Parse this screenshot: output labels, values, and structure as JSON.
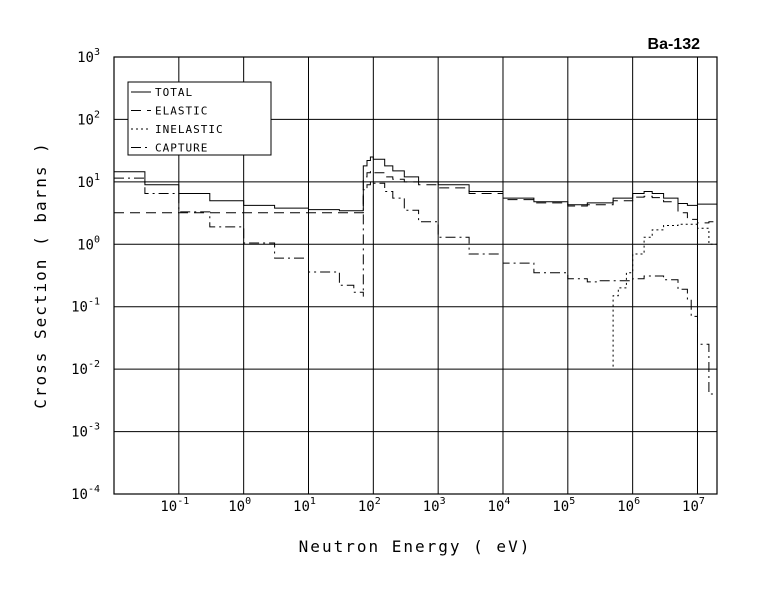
{
  "chart_data": {
    "type": "line",
    "title": "Ba-132",
    "xlabel": "Neutron Energy ( eV)",
    "ylabel": "Cross Section ( barns )",
    "x_scale": "log",
    "y_scale": "log",
    "xlim": [
      0.01,
      20000000
    ],
    "ylim": [
      0.0001,
      1000
    ],
    "grid": true,
    "legend_position": "top-left",
    "x_ticks": [
      {
        "base": "10",
        "exp": "-1",
        "value": 0.1
      },
      {
        "base": "10",
        "exp": "0",
        "value": 1
      },
      {
        "base": "10",
        "exp": "1",
        "value": 10
      },
      {
        "base": "10",
        "exp": "2",
        "value": 100
      },
      {
        "base": "10",
        "exp": "3",
        "value": 1000
      },
      {
        "base": "10",
        "exp": "4",
        "value": 10000
      },
      {
        "base": "10",
        "exp": "5",
        "value": 100000
      },
      {
        "base": "10",
        "exp": "6",
        "value": 1000000
      },
      {
        "base": "10",
        "exp": "7",
        "value": 10000000
      }
    ],
    "y_ticks": [
      {
        "base": "10",
        "exp": "-4",
        "value": 0.0001
      },
      {
        "base": "10",
        "exp": "-3",
        "value": 0.001
      },
      {
        "base": "10",
        "exp": "-2",
        "value": 0.01
      },
      {
        "base": "10",
        "exp": "-1",
        "value": 0.1
      },
      {
        "base": "10",
        "exp": "0",
        "value": 1
      },
      {
        "base": "10",
        "exp": "1",
        "value": 10
      },
      {
        "base": "10",
        "exp": "2",
        "value": 100
      },
      {
        "base": "10",
        "exp": "3",
        "value": 1000
      }
    ],
    "series": [
      {
        "name": "TOTAL",
        "dash": "solid",
        "x": [
          0.01,
          0.03,
          0.1,
          0.3,
          1,
          3,
          10,
          30,
          70,
          70,
          80,
          90,
          100,
          150,
          200,
          300,
          500,
          1000,
          3000,
          10000,
          30000,
          100000,
          200000,
          500000,
          1000000,
          1500000,
          2000000,
          3000000,
          5000000,
          7000000,
          10000000,
          20000000
        ],
        "y": [
          14.5,
          9,
          6.5,
          5,
          4.2,
          3.8,
          3.6,
          3.45,
          3.4,
          18,
          22,
          25,
          23,
          18,
          15,
          12,
          10,
          9,
          7,
          5.5,
          4.8,
          4.3,
          4.6,
          5.5,
          6.5,
          7,
          6.5,
          5.5,
          4.5,
          4.2,
          4.4,
          4.8
        ]
      },
      {
        "name": "ELASTIC",
        "dash": "long-dash",
        "x": [
          0.01,
          0.1,
          1,
          10,
          70,
          70,
          80,
          90,
          100,
          150,
          200,
          300,
          500,
          1000,
          3000,
          10000,
          30000,
          100000,
          200000,
          500000,
          1000000,
          1500000,
          2000000,
          3000000,
          5000000,
          7000000,
          10000000,
          15000000,
          20000000
        ],
        "y": [
          3.2,
          3.2,
          3.2,
          3.2,
          3.2,
          12,
          14,
          15,
          14,
          12,
          11,
          10,
          9,
          8,
          6.5,
          5.2,
          4.6,
          4.1,
          4.3,
          5,
          5.7,
          5.9,
          5.6,
          4.8,
          3.2,
          2.5,
          2.2,
          2.3,
          2.6
        ]
      },
      {
        "name": "INELASTIC",
        "dash": "dotted",
        "x": [
          500000,
          500000,
          600000,
          800000,
          1000000,
          1500000,
          2000000,
          3000000,
          5000000,
          7000000,
          10000000,
          15000000,
          20000000
        ],
        "y": [
          0.011,
          0.15,
          0.2,
          0.35,
          0.7,
          1.3,
          1.7,
          2,
          2.1,
          2.1,
          1.8,
          1,
          0.5
        ]
      },
      {
        "name": "CAPTURE",
        "dash": "dash-dot",
        "x": [
          0.01,
          0.03,
          0.1,
          0.3,
          1,
          3,
          10,
          30,
          50,
          70,
          70,
          80,
          90,
          100,
          150,
          200,
          300,
          500,
          1000,
          3000,
          10000,
          30000,
          100000,
          200000,
          300000,
          500000,
          1000000,
          1500000,
          2000000,
          3000000,
          5000000,
          7000000,
          8000000,
          10000000,
          15000000,
          20000000
        ],
        "y": [
          11.5,
          6.5,
          3.3,
          1.9,
          1.05,
          0.6,
          0.36,
          0.22,
          0.17,
          0.145,
          7.5,
          9,
          10,
          9.5,
          7,
          5.5,
          3.5,
          2.3,
          1.3,
          0.7,
          0.5,
          0.35,
          0.28,
          0.25,
          0.26,
          0.26,
          0.28,
          0.31,
          0.31,
          0.27,
          0.19,
          0.13,
          0.07,
          0.025,
          0.004,
          0.0017
        ]
      }
    ]
  }
}
